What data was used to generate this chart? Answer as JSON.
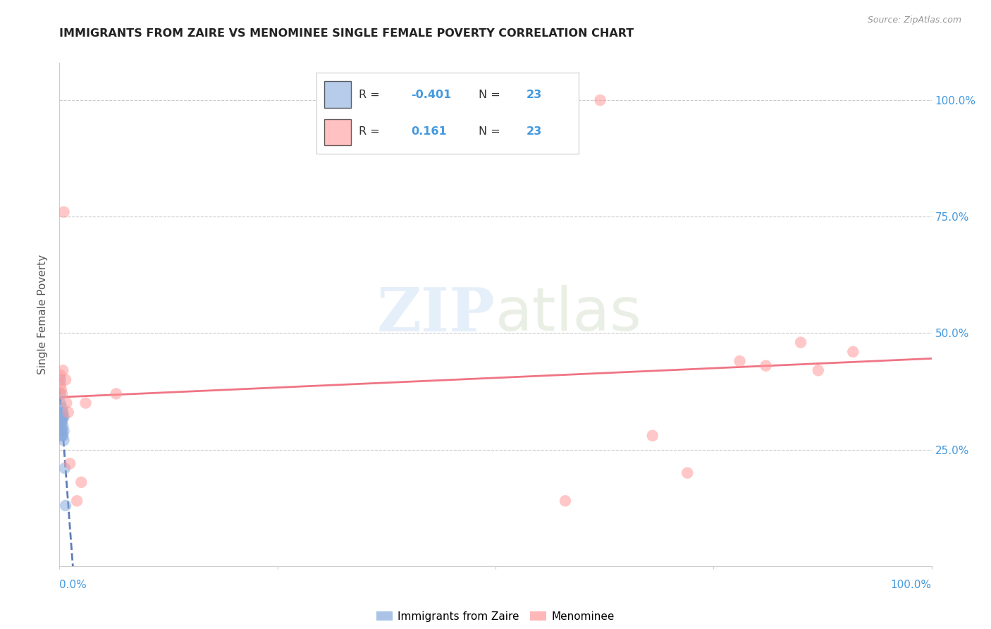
{
  "title": "IMMIGRANTS FROM ZAIRE VS MENOMINEE SINGLE FEMALE POVERTY CORRELATION CHART",
  "source": "Source: ZipAtlas.com",
  "ylabel": "Single Female Poverty",
  "legend_label1": "Immigrants from Zaire",
  "legend_label2": "Menominee",
  "r1": "-0.401",
  "n1": "23",
  "r2": "0.161",
  "n2": "23",
  "blue_color": "#88AADD",
  "pink_color": "#FF9999",
  "blue_line_color": "#4466AA",
  "pink_line_color": "#EE6677",
  "title_color": "#222222",
  "axis_label_color": "#4499DD",
  "blue_x": [
    0.001,
    0.001,
    0.001,
    0.002,
    0.002,
    0.002,
    0.002,
    0.002,
    0.003,
    0.003,
    0.003,
    0.003,
    0.003,
    0.003,
    0.004,
    0.004,
    0.004,
    0.004,
    0.005,
    0.005,
    0.005,
    0.006,
    0.007
  ],
  "blue_y": [
    0.4,
    0.37,
    0.35,
    0.32,
    0.31,
    0.3,
    0.29,
    0.28,
    0.34,
    0.33,
    0.32,
    0.31,
    0.29,
    0.28,
    0.33,
    0.32,
    0.3,
    0.28,
    0.32,
    0.29,
    0.27,
    0.21,
    0.13
  ],
  "pink_x": [
    0.001,
    0.001,
    0.002,
    0.003,
    0.004,
    0.005,
    0.007,
    0.008,
    0.01,
    0.012,
    0.02,
    0.025,
    0.03,
    0.065,
    0.58,
    0.62,
    0.68,
    0.72,
    0.78,
    0.81,
    0.85,
    0.87,
    0.91
  ],
  "pink_y": [
    0.41,
    0.39,
    0.38,
    0.37,
    0.42,
    0.76,
    0.4,
    0.35,
    0.33,
    0.22,
    0.14,
    0.18,
    0.35,
    0.37,
    0.14,
    1.0,
    0.28,
    0.2,
    0.44,
    0.43,
    0.48,
    0.42,
    0.46
  ],
  "xlim": [
    0.0,
    1.0
  ],
  "ylim": [
    0.0,
    1.08
  ],
  "yticks": [
    0.0,
    0.25,
    0.5,
    0.75,
    1.0
  ],
  "ytick_labels_right": [
    "",
    "25.0%",
    "50.0%",
    "75.0%",
    "100.0%"
  ],
  "grid_color": "#CCCCCC",
  "background_color": "#FFFFFF",
  "marker_size": 140,
  "alpha": 0.55
}
